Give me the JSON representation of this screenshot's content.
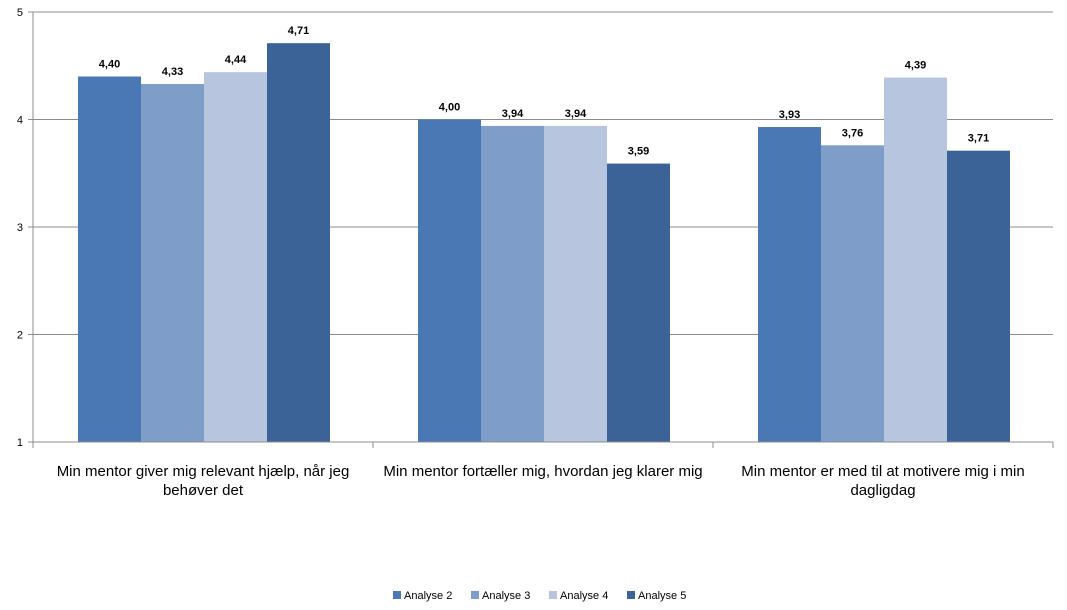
{
  "chart_data": {
    "type": "bar",
    "categories": [
      [
        "Min mentor giver mig relevant hjælp, når jeg",
        "behøver det"
      ],
      [
        "Min mentor fortæller mig, hvordan jeg klarer mig"
      ],
      [
        "Min mentor er med til at motivere mig i min",
        "dagligdag"
      ]
    ],
    "series": [
      {
        "name": "Analyse 2",
        "color": "#4a78b4",
        "values": [
          4.4,
          4.0,
          3.93
        ],
        "labels": [
          "4,40",
          "4,00",
          "3,93"
        ]
      },
      {
        "name": "Analyse 3",
        "color": "#7e9dc9",
        "values": [
          4.33,
          3.94,
          3.76
        ],
        "labels": [
          "4,33",
          "3,94",
          "3,76"
        ]
      },
      {
        "name": "Analyse 4",
        "color": "#b7c5df",
        "values": [
          4.44,
          3.94,
          4.39
        ],
        "labels": [
          "4,44",
          "3,94",
          "4,39"
        ]
      },
      {
        "name": "Analyse 5",
        "color": "#3b6397",
        "values": [
          4.71,
          3.59,
          3.71
        ],
        "labels": [
          "4,71",
          "3,59",
          "3,71"
        ]
      }
    ],
    "ylim": [
      1,
      5
    ],
    "yticks": [
      1,
      2,
      3,
      4,
      5
    ],
    "grid": true,
    "legend_position": "bottom",
    "title": "",
    "xlabel": "",
    "ylabel": ""
  }
}
